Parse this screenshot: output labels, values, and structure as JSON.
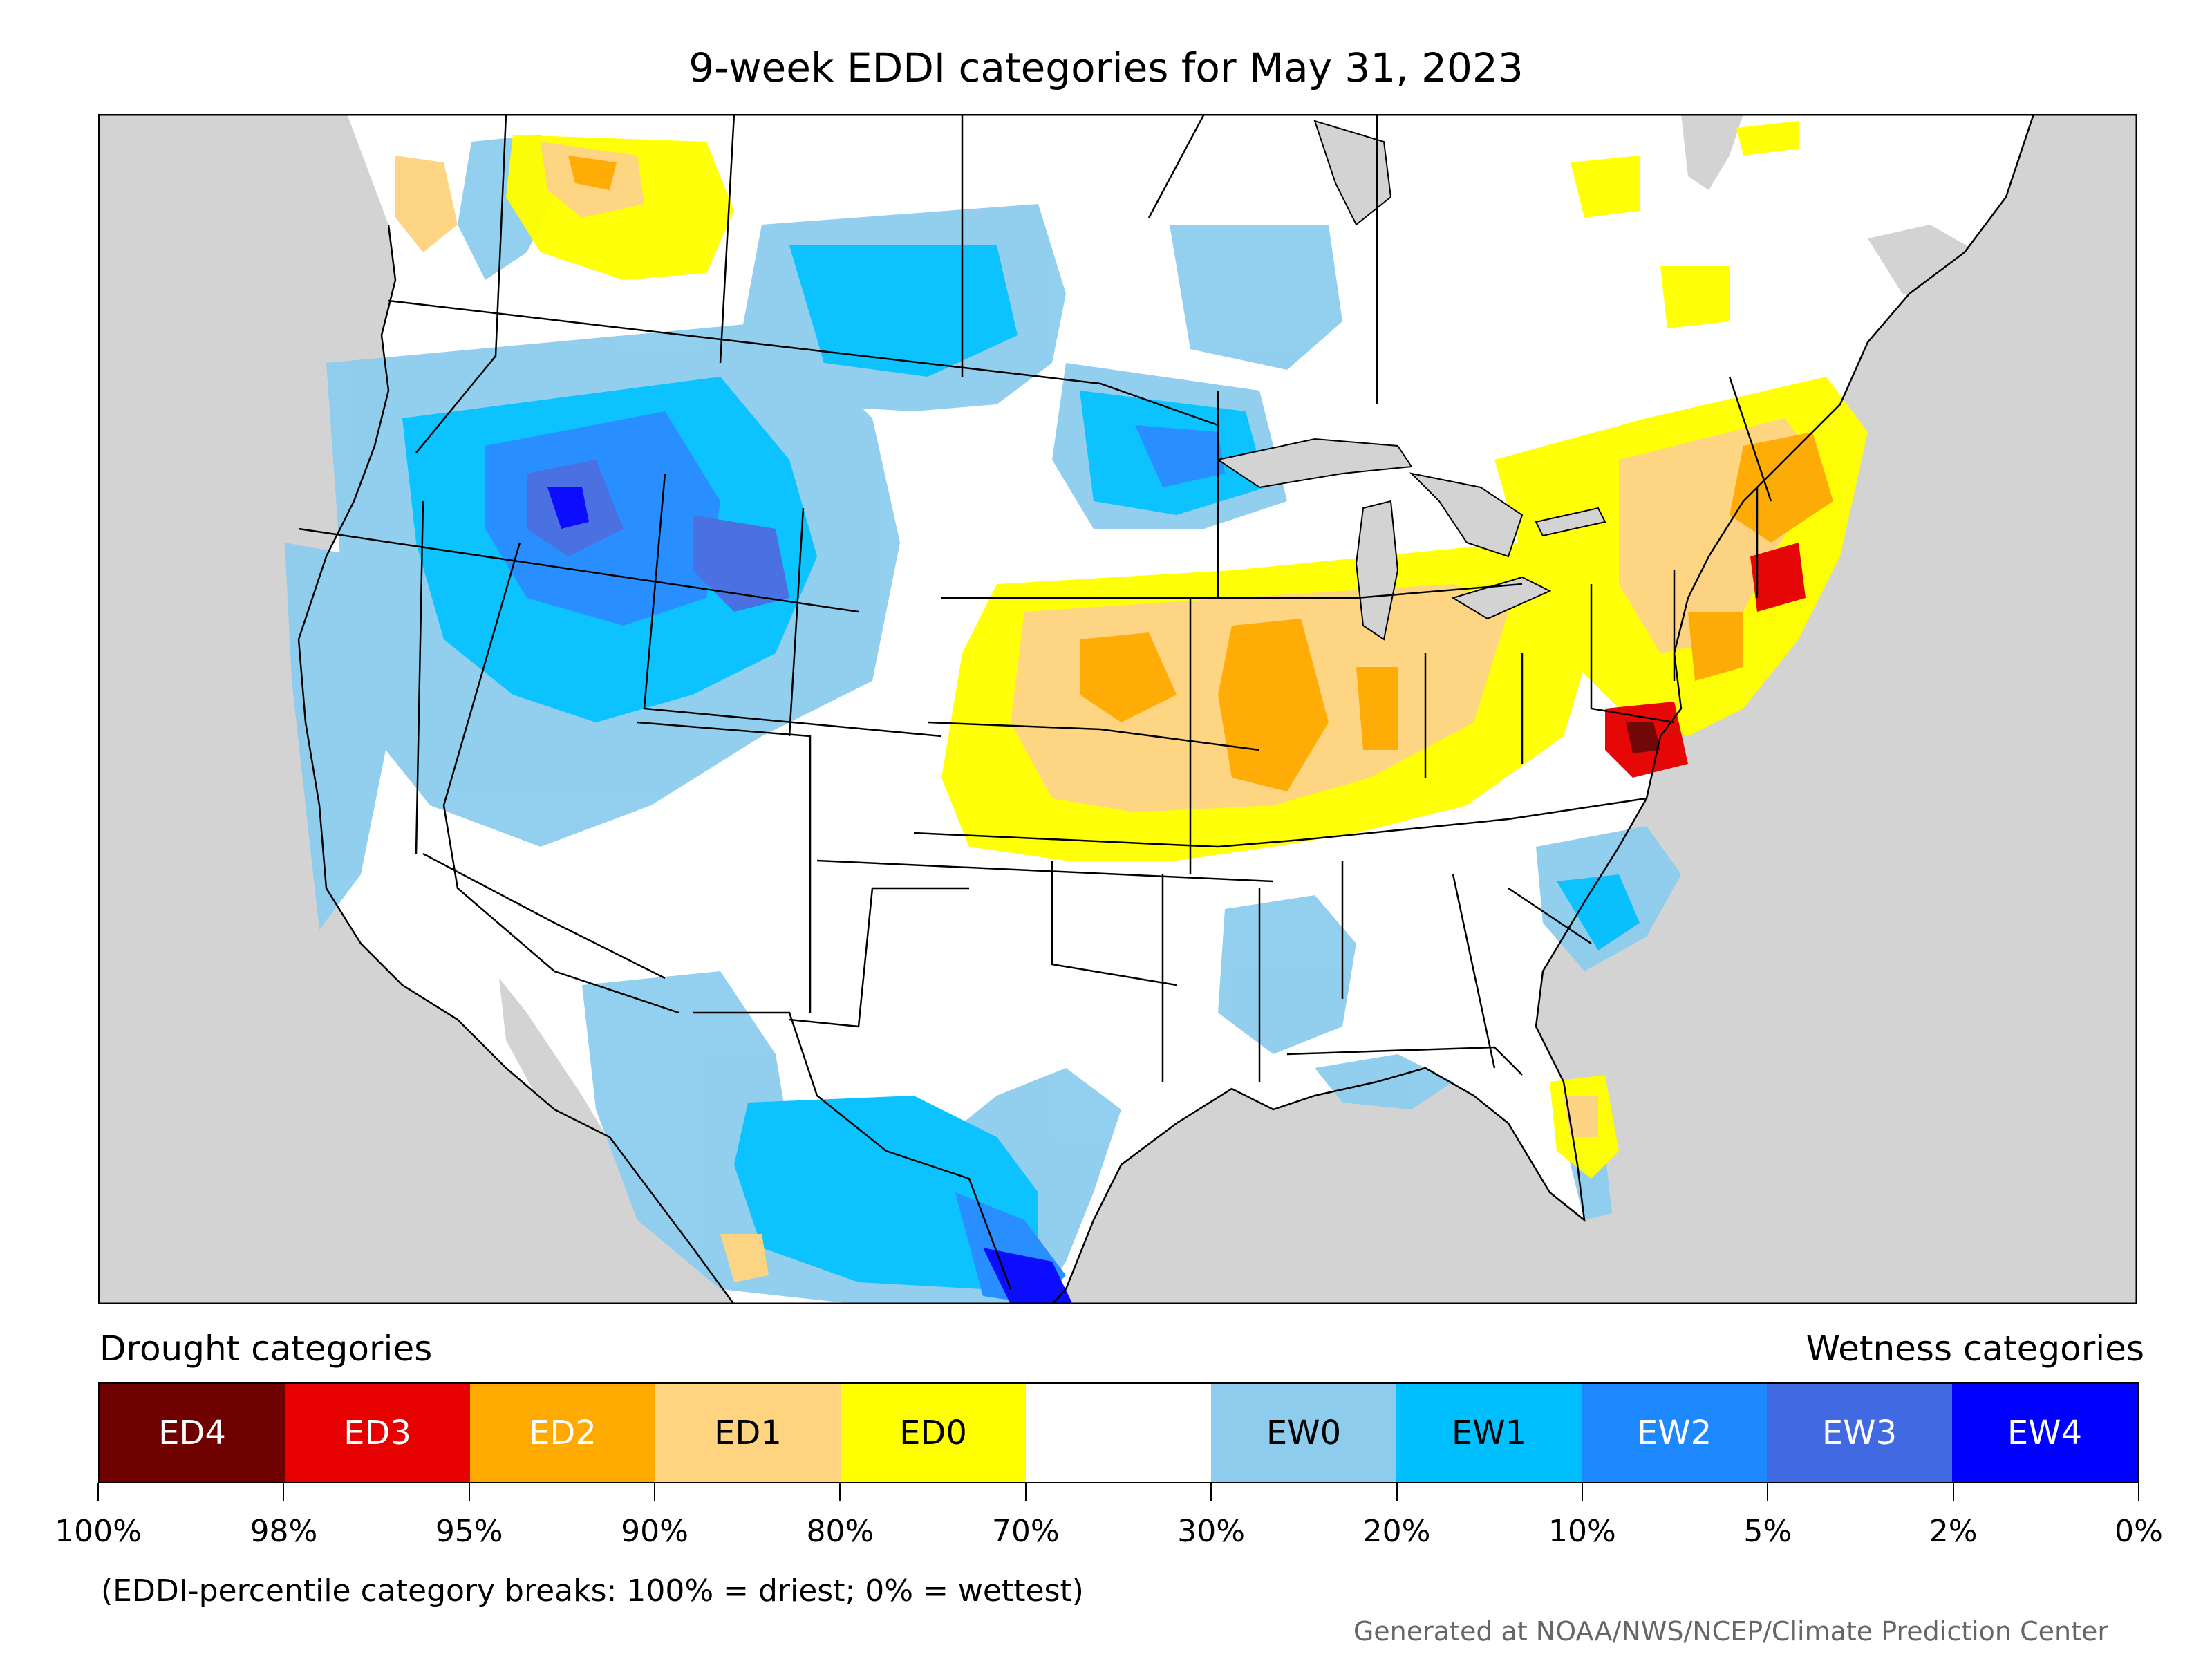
{
  "title": "9-week EDDI categories for May 31, 2023",
  "legend": {
    "drought_label": "Drought categories",
    "wetness_label": "Wetness categories",
    "categories": [
      {
        "label": "ED4",
        "color": "#6e0000",
        "text_color": "#ffffff"
      },
      {
        "label": "ED3",
        "color": "#e60000",
        "text_color": "#ffffff"
      },
      {
        "label": "ED2",
        "color": "#ffaa00",
        "text_color": "#ffffff"
      },
      {
        "label": "ED1",
        "color": "#fed480",
        "text_color": "#000000"
      },
      {
        "label": "ED0",
        "color": "#ffff00",
        "text_color": "#000000"
      },
      {
        "label": "",
        "color": "#ffffff",
        "text_color": "#000000"
      },
      {
        "label": "EW0",
        "color": "#8dcced",
        "text_color": "#000000"
      },
      {
        "label": "EW1",
        "color": "#00bfff",
        "text_color": "#000000"
      },
      {
        "label": "EW2",
        "color": "#1e88ff",
        "text_color": "#ffffff"
      },
      {
        "label": "EW3",
        "color": "#4169e1",
        "text_color": "#ffffff"
      },
      {
        "label": "EW4",
        "color": "#0000ff",
        "text_color": "#ffffff"
      }
    ],
    "breaks": [
      "100%",
      "98%",
      "95%",
      "90%",
      "80%",
      "70%",
      "30%",
      "20%",
      "10%",
      "5%",
      "2%",
      "0%"
    ]
  },
  "note": "(EDDI-percentile category breaks: 100% = driest; 0% = wettest)",
  "credit": "Generated at NOAA/NWS/NCEP/Climate Prediction Center",
  "map": {
    "background_color": "#d3d3d3",
    "land_color": "#ffffff",
    "border_color": "#000000"
  }
}
